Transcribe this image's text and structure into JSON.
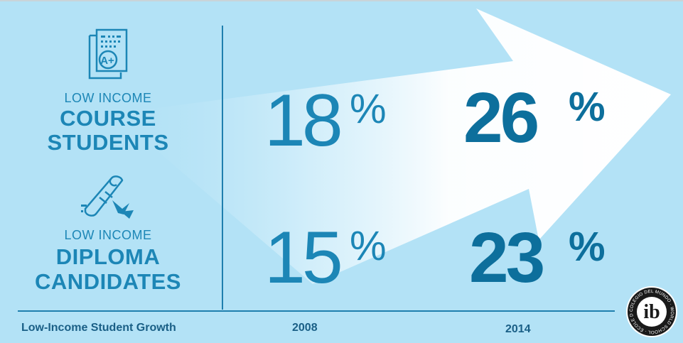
{
  "chart_data": {
    "type": "table",
    "title": "Low-Income Student Growth",
    "columns": [
      "2008",
      "2014"
    ],
    "rows": [
      {
        "label_top": "LOW INCOME",
        "label_main": [
          "COURSE",
          "STUDENTS"
        ],
        "values": [
          18,
          26
        ]
      },
      {
        "label_top": "LOW INCOME",
        "label_main": [
          "DIPLOMA",
          "CANDIDATES"
        ],
        "values": [
          15,
          23
        ]
      }
    ],
    "unit": "%"
  },
  "icons": {
    "row1": "graded-paper-a-plus-icon",
    "row2": "diploma-scroll-icon",
    "logo": "ib-world-school-logo"
  },
  "logo_text": "COLEGIO DEL MUNDO · WORLD SCHOOL · ÉCOLE DU MONDE ·",
  "logo_letters": "ib",
  "colors": {
    "background": "#b3e2f6",
    "arrow": "#ffffff",
    "text": "#1c86b6",
    "text_bold": "#0d6f9c",
    "rules": "#1f7fae"
  }
}
